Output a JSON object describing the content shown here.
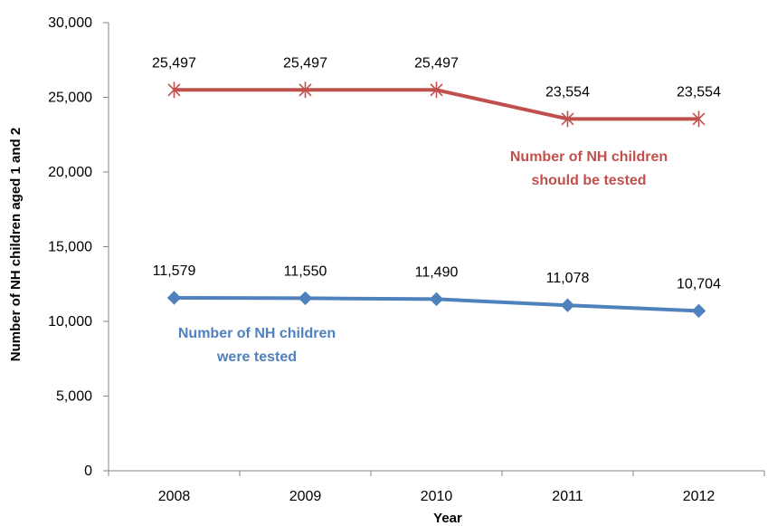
{
  "chart_data": {
    "type": "line",
    "title": "",
    "xlabel": "Year",
    "ylabel": "Number of NH children aged 1 and 2",
    "categories": [
      "2008",
      "2009",
      "2010",
      "2011",
      "2012"
    ],
    "ylim": [
      0,
      30000
    ],
    "yticks": [
      0,
      5000,
      10000,
      15000,
      20000,
      25000,
      30000
    ],
    "ytick_labels": [
      "0",
      "5,000",
      "10,000",
      "15,000",
      "20,000",
      "25,000",
      "30,000"
    ],
    "grid": false,
    "series": [
      {
        "key": "should_be_tested",
        "values": [
          25497,
          25497,
          25497,
          23554,
          23554
        ],
        "labels": [
          "25,497",
          "25,497",
          "25,497",
          "23,554",
          "23,554"
        ],
        "color": "#C0504D",
        "marker": "asterisk",
        "annotation": [
          "Number of NH children",
          "should be tested"
        ]
      },
      {
        "key": "were_tested",
        "values": [
          11579,
          11550,
          11490,
          11078,
          10704
        ],
        "labels": [
          "11,579",
          "11,550",
          "11,490",
          "11,078",
          "10,704"
        ],
        "color": "#4F81BD",
        "marker": "diamond",
        "annotation": [
          "Number of NH children",
          "were tested"
        ]
      }
    ]
  }
}
